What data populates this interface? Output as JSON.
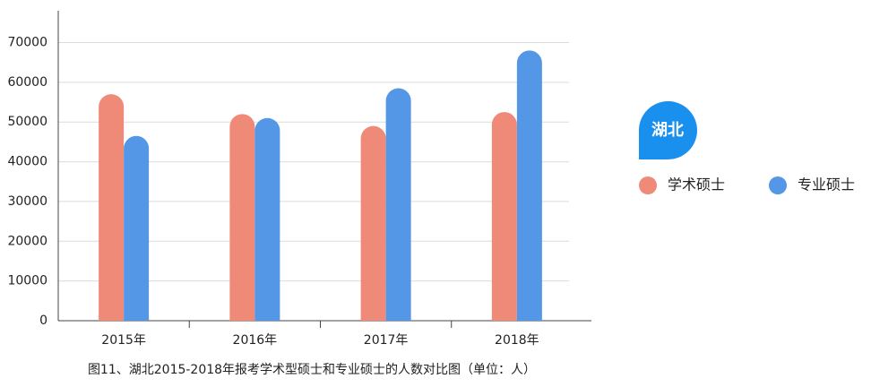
{
  "chart_data": {
    "type": "bar",
    "caption": "图11、湖北2015-2018年报考学术型硕士和专业硕士的人数对比图（单位：人）",
    "legend_title": "湖北",
    "legend": "right",
    "categories": [
      "2015年",
      "2016年",
      "2017年",
      "2018年"
    ],
    "series": [
      {
        "name": "学术硕士",
        "color": "#f08a78",
        "values": [
          57000,
          52000,
          49000,
          52500
        ]
      },
      {
        "name": "专业硕士",
        "color": "#5397e6",
        "values": [
          46500,
          51000,
          58500,
          68000
        ]
      }
    ],
    "ylim": [
      0,
      78000
    ],
    "yticks": [
      0,
      10000,
      20000,
      30000,
      40000,
      50000,
      60000,
      70000
    ],
    "grid": true
  }
}
